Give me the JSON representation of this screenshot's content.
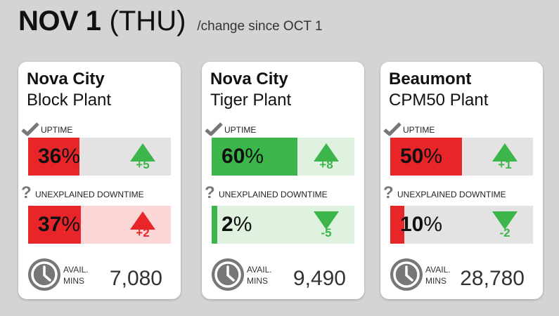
{
  "header": {
    "date": "NOV 1",
    "day": "(THU)",
    "subtitle": "/change since OCT 1"
  },
  "labels": {
    "uptime": "UPTIME",
    "downtime": "UNEXPLAINED DOWNTIME",
    "avail_line1": "AVAIL.",
    "avail_line2": "MINS"
  },
  "icons": {
    "uptime": "check-icon",
    "downtime": "question-icon",
    "avail": "clock-icon",
    "increase": "arrow-up-icon",
    "decrease": "arrow-down-icon"
  },
  "colors": {
    "red": "#e8262a",
    "green": "#3cb54a",
    "light_green": "#dff2df",
    "light_red": "#fad6d6",
    "neutral": "#e3e3e3",
    "icon_gray": "#777777"
  },
  "plants": [
    {
      "city": "Nova City",
      "plant": "Block Plant",
      "uptime": {
        "value": "36",
        "unit": "%",
        "fraction": 0.36,
        "status": "red",
        "delta": "+5",
        "direction": "up",
        "delta_color": "green"
      },
      "downtime": {
        "value": "37",
        "unit": "%",
        "fraction": 0.37,
        "status": "red",
        "delta": "+2",
        "direction": "up",
        "delta_color": "red"
      },
      "avail_mins": "7,080"
    },
    {
      "city": "Nova City",
      "plant": "Tiger Plant",
      "uptime": {
        "value": "60",
        "unit": "%",
        "fraction": 0.6,
        "status": "green",
        "delta": "+8",
        "direction": "up",
        "delta_color": "green"
      },
      "downtime": {
        "value": "2",
        "unit": "%",
        "fraction": 0.02,
        "status": "green",
        "delta": "-5",
        "direction": "down",
        "delta_color": "green"
      },
      "avail_mins": "9,490"
    },
    {
      "city": "Beaumont",
      "plant": "CPM50 Plant",
      "uptime": {
        "value": "50",
        "unit": "%",
        "fraction": 0.5,
        "status": "red",
        "delta": "+1",
        "direction": "up",
        "delta_color": "green"
      },
      "downtime": {
        "value": "10",
        "unit": "%",
        "fraction": 0.1,
        "status": "red",
        "delta": "-2",
        "direction": "down",
        "delta_color": "green"
      },
      "avail_mins": "28,780"
    }
  ]
}
